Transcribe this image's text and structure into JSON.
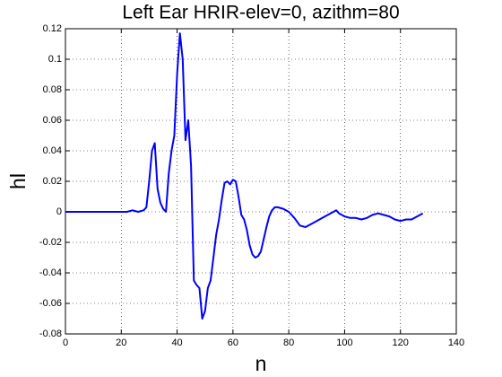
{
  "chart_data": {
    "type": "line",
    "title": "Left Ear HRIR-elev=0, azithm=80",
    "xlabel": "n",
    "ylabel": "hl",
    "x": [
      0,
      2,
      4,
      6,
      8,
      10,
      12,
      14,
      16,
      18,
      20,
      22,
      24,
      26,
      28,
      29,
      30,
      31,
      32,
      33,
      34,
      35,
      36,
      37,
      38,
      39,
      40,
      41,
      42,
      43,
      44,
      45,
      46,
      47,
      48,
      49,
      50,
      51,
      52,
      53,
      54,
      55,
      56,
      57,
      58,
      59,
      60,
      61,
      62,
      63,
      64,
      65,
      66,
      67,
      68,
      69,
      70,
      71,
      72,
      73,
      74,
      75,
      76,
      78,
      80,
      82,
      84,
      86,
      88,
      90,
      92,
      94,
      96,
      97,
      98,
      100,
      102,
      104,
      106,
      108,
      110,
      112,
      114,
      116,
      118,
      120,
      122,
      124,
      126,
      128
    ],
    "series": [
      {
        "name": "hl",
        "color": "#0000ff",
        "values": [
          0,
          0,
          0,
          0,
          0,
          0,
          0,
          0,
          0,
          0,
          0,
          0,
          0.001,
          0,
          0.001,
          0.003,
          0.02,
          0.04,
          0.045,
          0.015,
          0.006,
          0.002,
          0,
          0.025,
          0.04,
          0.05,
          0.09,
          0.117,
          0.1,
          0.047,
          0.06,
          0.03,
          -0.045,
          -0.048,
          -0.05,
          -0.07,
          -0.065,
          -0.05,
          -0.045,
          -0.03,
          -0.015,
          -0.005,
          0.008,
          0.019,
          0.02,
          0.018,
          0.021,
          0.02,
          0.01,
          -0.002,
          -0.005,
          -0.012,
          -0.022,
          -0.028,
          -0.03,
          -0.029,
          -0.026,
          -0.018,
          -0.01,
          -0.003,
          0.001,
          0.003,
          0.003,
          0.002,
          0,
          -0.004,
          -0.009,
          -0.01,
          -0.008,
          -0.006,
          -0.004,
          -0.002,
          0,
          0.001,
          -0.001,
          -0.003,
          -0.004,
          -0.004,
          -0.005,
          -0.004,
          -0.002,
          -0.001,
          -0.002,
          -0.003,
          -0.005,
          -0.006,
          -0.005,
          -0.005,
          -0.003,
          -0.001
        ]
      }
    ],
    "xlim": [
      0,
      140
    ],
    "xticks": [
      0,
      20,
      40,
      60,
      80,
      100,
      120,
      140
    ],
    "ylim": [
      -0.08,
      0.12
    ],
    "yticks": [
      -0.08,
      -0.06,
      -0.04,
      -0.02,
      0,
      0.02,
      0.04,
      0.06,
      0.08,
      0.1,
      0.12
    ],
    "grid": true
  }
}
